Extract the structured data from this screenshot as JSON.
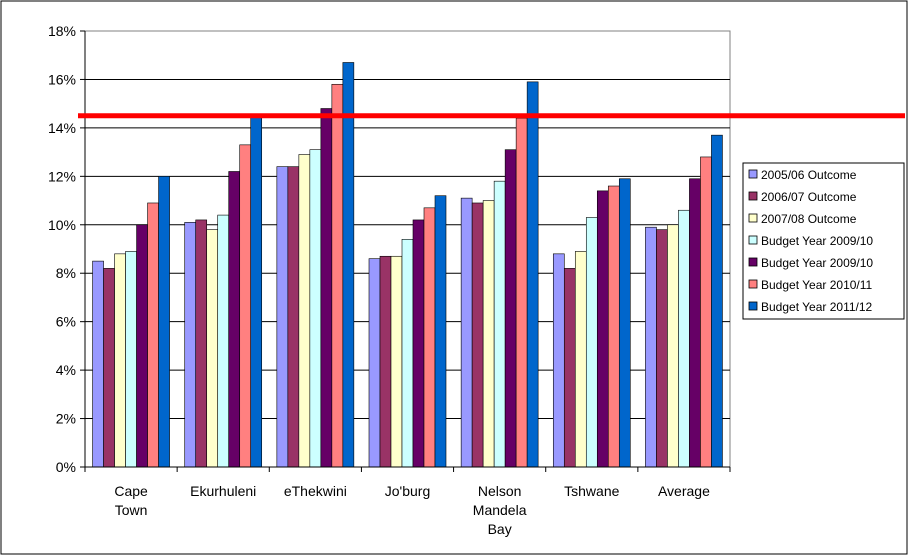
{
  "chart_data": {
    "type": "bar",
    "title": "",
    "xlabel": "",
    "ylabel": "",
    "ylim": [
      0,
      18
    ],
    "y_ticks": [
      "0%",
      "2%",
      "4%",
      "6%",
      "8%",
      "10%",
      "12%",
      "14%",
      "16%",
      "18%"
    ],
    "categories": [
      [
        "Cape",
        "Town"
      ],
      [
        "Ekurhuleni"
      ],
      [
        "eThekwini"
      ],
      [
        "Jo'burg"
      ],
      [
        "Nelson",
        "Mandela",
        "Bay"
      ],
      [
        "Tshwane"
      ],
      [
        "Average"
      ]
    ],
    "series": [
      {
        "name": "2005/06 Outcome",
        "color": "#9999ff",
        "values": [
          8.5,
          10.1,
          12.4,
          8.6,
          11.1,
          8.8,
          9.9
        ]
      },
      {
        "name": "2006/07 Outcome",
        "color": "#993366",
        "values": [
          8.2,
          10.2,
          12.4,
          8.7,
          10.9,
          8.2,
          9.8
        ]
      },
      {
        "name": "2007/08 Outcome",
        "color": "#ffffcc",
        "values": [
          8.8,
          9.8,
          12.9,
          8.7,
          11.0,
          8.9,
          10.0
        ]
      },
      {
        "name": "Budget Year 2009/10",
        "color": "#ccffff",
        "values": [
          8.9,
          10.4,
          13.1,
          9.4,
          11.8,
          10.3,
          10.6
        ]
      },
      {
        "name": "Budget Year 2009/10",
        "color": "#660066",
        "values": [
          10.0,
          12.2,
          14.8,
          10.2,
          13.1,
          11.4,
          11.9
        ]
      },
      {
        "name": "Budget Year 2010/11",
        "color": "#ff8080",
        "values": [
          10.9,
          13.3,
          15.8,
          10.7,
          14.4,
          11.6,
          12.8
        ]
      },
      {
        "name": "Budget Year 2011/12",
        "color": "#0066cc",
        "values": [
          12.0,
          14.5,
          16.7,
          11.2,
          15.9,
          11.9,
          13.7
        ]
      }
    ],
    "reference_line": {
      "value": 14.5,
      "color": "#ff0000"
    },
    "grid": true,
    "legend_position": "right"
  }
}
